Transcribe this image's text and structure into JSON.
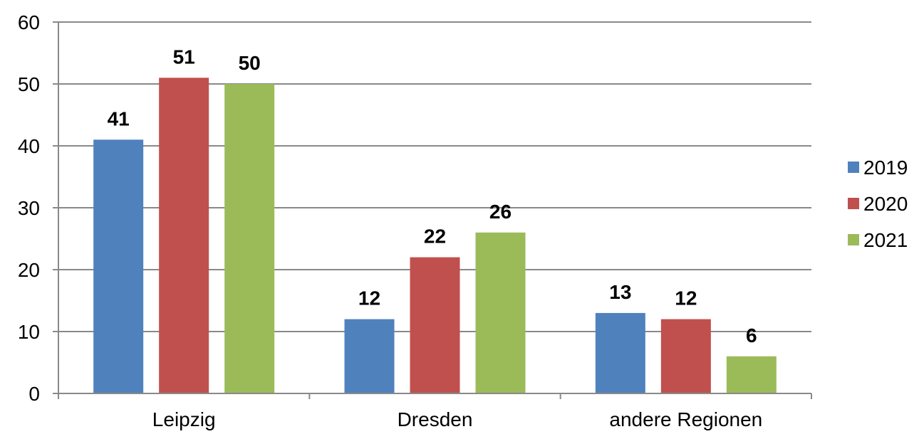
{
  "chart_data": {
    "type": "bar",
    "categories": [
      "Leipzig",
      "Dresden",
      "andere Regionen"
    ],
    "series": [
      {
        "name": "2019",
        "values": [
          41,
          12,
          13
        ],
        "color": "#4F81BD"
      },
      {
        "name": "2020",
        "values": [
          51,
          22,
          12
        ],
        "color": "#C0504D"
      },
      {
        "name": "2021",
        "values": [
          50,
          26,
          6
        ],
        "color": "#9BBB59"
      }
    ],
    "ylim": [
      0,
      60
    ],
    "yticks": [
      0,
      10,
      20,
      30,
      40,
      50,
      60
    ],
    "grid": true,
    "legend_position": "right",
    "data_labels": true,
    "gridline_color": "#898989",
    "axis_color": "#898989"
  }
}
